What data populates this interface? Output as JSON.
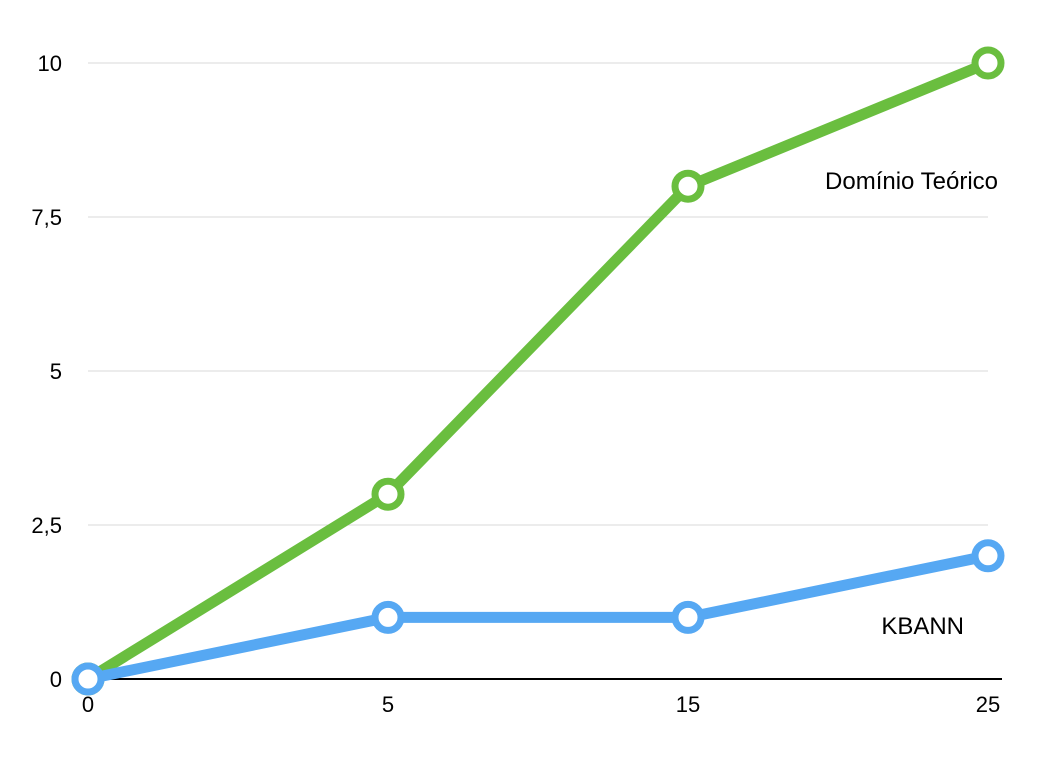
{
  "chart_data": {
    "type": "line",
    "title": "",
    "xlabel": "",
    "ylabel": "",
    "x": [
      0,
      5,
      15,
      25
    ],
    "x_tick_labels": [
      "0",
      "5",
      "15",
      "25"
    ],
    "y_ticks": [
      0,
      2.5,
      5,
      7.5,
      10
    ],
    "y_tick_labels": [
      "0",
      "2,5",
      "5",
      "7,5",
      "10"
    ],
    "ylim": [
      0,
      10
    ],
    "grid": true,
    "legend": "inline labels at right end of each line",
    "series": [
      {
        "name": "Domínio Teórico",
        "color": "#6ABE3F",
        "values": [
          0,
          3,
          8,
          10
        ]
      },
      {
        "name": "KBANN",
        "color": "#56A8F3",
        "values": [
          0,
          1,
          1,
          2
        ]
      }
    ]
  }
}
